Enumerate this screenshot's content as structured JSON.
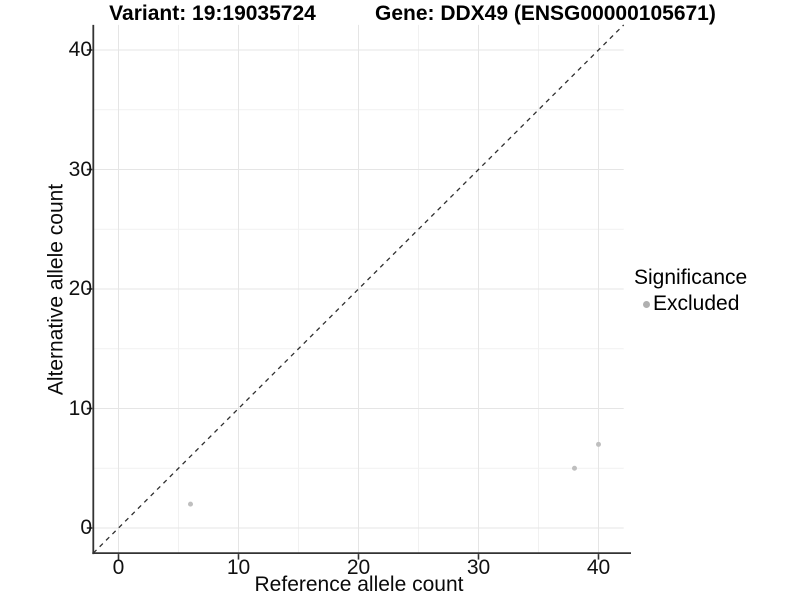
{
  "titles": {
    "variant": "Variant: 19:19035724",
    "gene": "Gene: DDX49 (ENSG00000105671)"
  },
  "axes": {
    "x_label": "Reference allele count",
    "y_label": "Alternative allele count"
  },
  "legend": {
    "title": "Significance",
    "items": [
      {
        "label": "Excluded",
        "color": "#b0b0b0",
        "marker": "circle-icon"
      }
    ]
  },
  "chart_data": {
    "type": "scatter",
    "title": "Variant: 19:19035724   Gene: DDX49 (ENSG00000105671)",
    "xlabel": "Reference allele count",
    "ylabel": "Alternative allele count",
    "xlim": [
      -2.1,
      42.1
    ],
    "ylim": [
      -2.1,
      42.1
    ],
    "x_ticks": [
      0,
      10,
      20,
      30,
      40
    ],
    "y_ticks": [
      0,
      10,
      20,
      30,
      40
    ],
    "x_minor_ticks": [
      5,
      15,
      25,
      35
    ],
    "y_minor_ticks": [
      5,
      15,
      25,
      35
    ],
    "grid": true,
    "legend_position": "right",
    "reference_line": {
      "type": "identity y=x",
      "style": "dashed",
      "color": "#2f2f2f"
    },
    "series": [
      {
        "name": "Excluded",
        "color": "#bfbfbf",
        "points": [
          [
            6,
            2
          ],
          [
            38,
            5
          ],
          [
            40,
            7
          ]
        ]
      }
    ],
    "style": {
      "grid_major_color": "#e5e5e5",
      "grid_minor_color": "#f1f1f1",
      "axis_color": "#333333",
      "background": "#ffffff"
    }
  }
}
